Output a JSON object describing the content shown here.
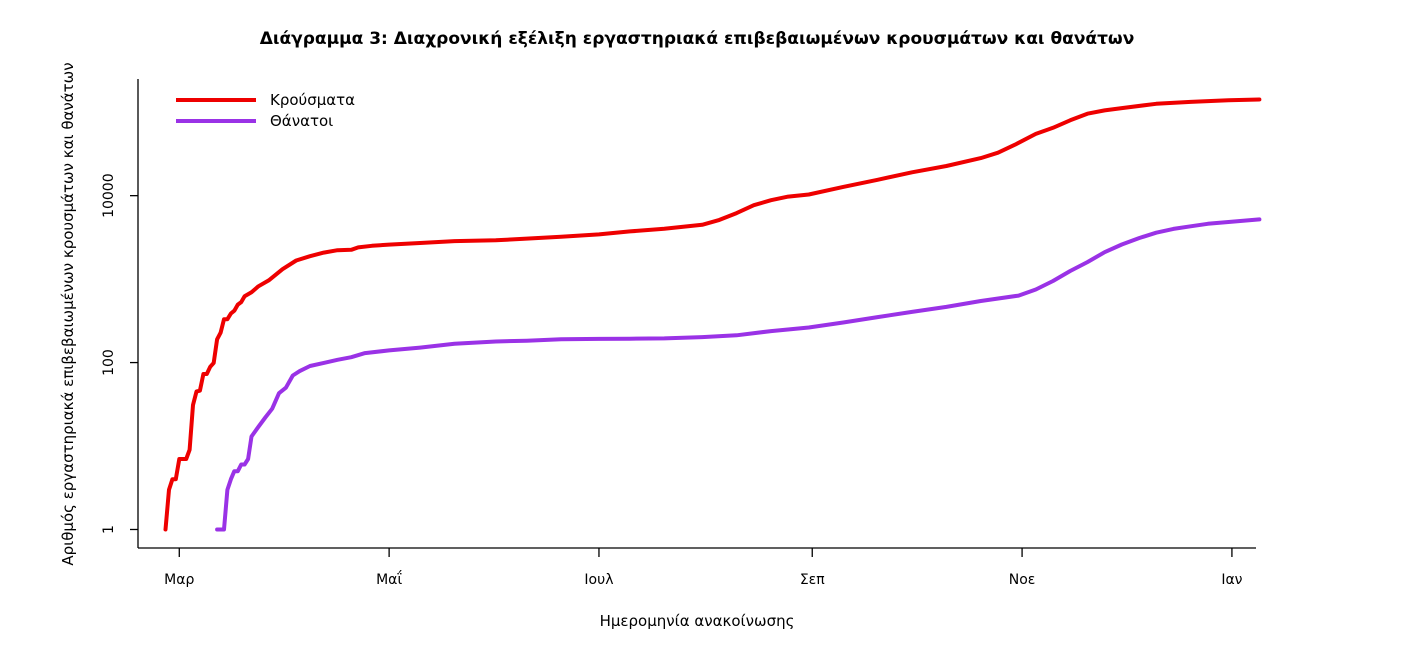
{
  "chart_data": {
    "type": "line",
    "title": "Διάγραμμα 3: Διαχρονική εξέλιξη εργαστηριακά επιβεβαιωμένων κρουσμάτων και θανάτων",
    "xlabel": "Ημερομηνία ανακοίνωσης",
    "ylabel": "Αριθμός εργαστηριακά επιβεβαιωμένων κρουσμάτων και θανάτων",
    "yscale": "log",
    "ylim": [
      0.6,
      250000
    ],
    "xlim": [
      "2020-02-18",
      "2021-01-08"
    ],
    "x_ticks": [
      {
        "date": "2020-03-01",
        "label": "Μαρ"
      },
      {
        "date": "2020-05-01",
        "label": "Μαΐ"
      },
      {
        "date": "2020-07-01",
        "label": "Ιουλ"
      },
      {
        "date": "2020-09-01",
        "label": "Σεπ"
      },
      {
        "date": "2020-11-01",
        "label": "Νοε"
      },
      {
        "date": "2021-01-01",
        "label": "Ιαν"
      }
    ],
    "y_ticks": [
      {
        "value": 1,
        "label": "1"
      },
      {
        "value": 100,
        "label": "100"
      },
      {
        "value": 10000,
        "label": "10000"
      }
    ],
    "legend_position": "top-left",
    "grid": false,
    "series": [
      {
        "name": "Κρούσματα",
        "color": "#ee0000",
        "points": [
          [
            "2020-02-26",
            1
          ],
          [
            "2020-02-27",
            3
          ],
          [
            "2020-02-28",
            4
          ],
          [
            "2020-02-29",
            4
          ],
          [
            "2020-03-01",
            7
          ],
          [
            "2020-03-03",
            7
          ],
          [
            "2020-03-04",
            9
          ],
          [
            "2020-03-05",
            31
          ],
          [
            "2020-03-06",
            45
          ],
          [
            "2020-03-07",
            46
          ],
          [
            "2020-03-08",
            73
          ],
          [
            "2020-03-09",
            73
          ],
          [
            "2020-03-10",
            89
          ],
          [
            "2020-03-11",
            99
          ],
          [
            "2020-03-12",
            190
          ],
          [
            "2020-03-13",
            228
          ],
          [
            "2020-03-14",
            331
          ],
          [
            "2020-03-15",
            331
          ],
          [
            "2020-03-16",
            387
          ],
          [
            "2020-03-17",
            418
          ],
          [
            "2020-03-18",
            495
          ],
          [
            "2020-03-19",
            530
          ],
          [
            "2020-03-20",
            624
          ],
          [
            "2020-03-22",
            695
          ],
          [
            "2020-03-24",
            821
          ],
          [
            "2020-03-27",
            966
          ],
          [
            "2020-03-31",
            1314
          ],
          [
            "2020-04-04",
            1673
          ],
          [
            "2020-04-08",
            1884
          ],
          [
            "2020-04-12",
            2081
          ],
          [
            "2020-04-16",
            2224
          ],
          [
            "2020-04-20",
            2245
          ],
          [
            "2020-04-22",
            2401
          ],
          [
            "2020-04-26",
            2506
          ],
          [
            "2020-05-01",
            2591
          ],
          [
            "2020-05-10",
            2710
          ],
          [
            "2020-05-20",
            2853
          ],
          [
            "2020-06-01",
            2917
          ],
          [
            "2020-06-10",
            3058
          ],
          [
            "2020-06-20",
            3227
          ],
          [
            "2020-07-01",
            3432
          ],
          [
            "2020-07-10",
            3732
          ],
          [
            "2020-07-20",
            4007
          ],
          [
            "2020-07-31",
            4477
          ],
          [
            "2020-08-05",
            5123
          ],
          [
            "2020-08-10",
            6177
          ],
          [
            "2020-08-15",
            7684
          ],
          [
            "2020-08-20",
            8819
          ],
          [
            "2020-08-25",
            9741
          ],
          [
            "2020-08-31",
            10317
          ],
          [
            "2020-09-10",
            12734
          ],
          [
            "2020-09-20",
            15481
          ],
          [
            "2020-09-30",
            19079
          ],
          [
            "2020-10-10",
            22652
          ],
          [
            "2020-10-20",
            28216
          ],
          [
            "2020-10-25",
            32752
          ],
          [
            "2020-10-30",
            40929
          ],
          [
            "2020-11-05",
            55000
          ],
          [
            "2020-11-10",
            65000
          ],
          [
            "2020-11-15",
            80000
          ],
          [
            "2020-11-20",
            96000
          ],
          [
            "2020-11-25",
            105000
          ],
          [
            "2020-11-30",
            112000
          ],
          [
            "2020-12-10",
            126000
          ],
          [
            "2020-12-20",
            133000
          ],
          [
            "2020-12-31",
            139000
          ],
          [
            "2021-01-09",
            142000
          ]
        ]
      },
      {
        "name": "Θάνατοι",
        "color": "#9a32e6",
        "points": [
          [
            "2020-03-12",
            1
          ],
          [
            "2020-03-13",
            1
          ],
          [
            "2020-03-14",
            1
          ],
          [
            "2020-03-15",
            3
          ],
          [
            "2020-03-16",
            4
          ],
          [
            "2020-03-17",
            5
          ],
          [
            "2020-03-18",
            5
          ],
          [
            "2020-03-19",
            6
          ],
          [
            "2020-03-20",
            6
          ],
          [
            "2020-03-21",
            7
          ],
          [
            "2020-03-22",
            13
          ],
          [
            "2020-03-24",
            17
          ],
          [
            "2020-03-26",
            22
          ],
          [
            "2020-03-28",
            28
          ],
          [
            "2020-03-30",
            43
          ],
          [
            "2020-04-01",
            50
          ],
          [
            "2020-04-03",
            70
          ],
          [
            "2020-04-05",
            79
          ],
          [
            "2020-04-08",
            91
          ],
          [
            "2020-04-12",
            99
          ],
          [
            "2020-04-16",
            108
          ],
          [
            "2020-04-20",
            116
          ],
          [
            "2020-04-24",
            130
          ],
          [
            "2020-05-01",
            140
          ],
          [
            "2020-05-10",
            151
          ],
          [
            "2020-05-20",
            168
          ],
          [
            "2020-06-01",
            179
          ],
          [
            "2020-06-10",
            183
          ],
          [
            "2020-06-20",
            190
          ],
          [
            "2020-07-01",
            192
          ],
          [
            "2020-07-10",
            193
          ],
          [
            "2020-07-20",
            195
          ],
          [
            "2020-07-31",
            202
          ],
          [
            "2020-08-10",
            212
          ],
          [
            "2020-08-20",
            238
          ],
          [
            "2020-08-31",
            263
          ],
          [
            "2020-09-10",
            302
          ],
          [
            "2020-09-20",
            351
          ],
          [
            "2020-09-30",
            405
          ],
          [
            "2020-10-10",
            465
          ],
          [
            "2020-10-20",
            547
          ],
          [
            "2020-10-31",
            634
          ],
          [
            "2020-11-05",
            750
          ],
          [
            "2020-11-10",
            950
          ],
          [
            "2020-11-15",
            1250
          ],
          [
            "2020-11-20",
            1600
          ],
          [
            "2020-11-25",
            2100
          ],
          [
            "2020-11-30",
            2600
          ],
          [
            "2020-12-05",
            3100
          ],
          [
            "2020-12-10",
            3600
          ],
          [
            "2020-12-15",
            4000
          ],
          [
            "2020-12-20",
            4300
          ],
          [
            "2020-12-25",
            4600
          ],
          [
            "2020-12-31",
            4838
          ],
          [
            "2021-01-09",
            5200
          ]
        ]
      }
    ]
  }
}
